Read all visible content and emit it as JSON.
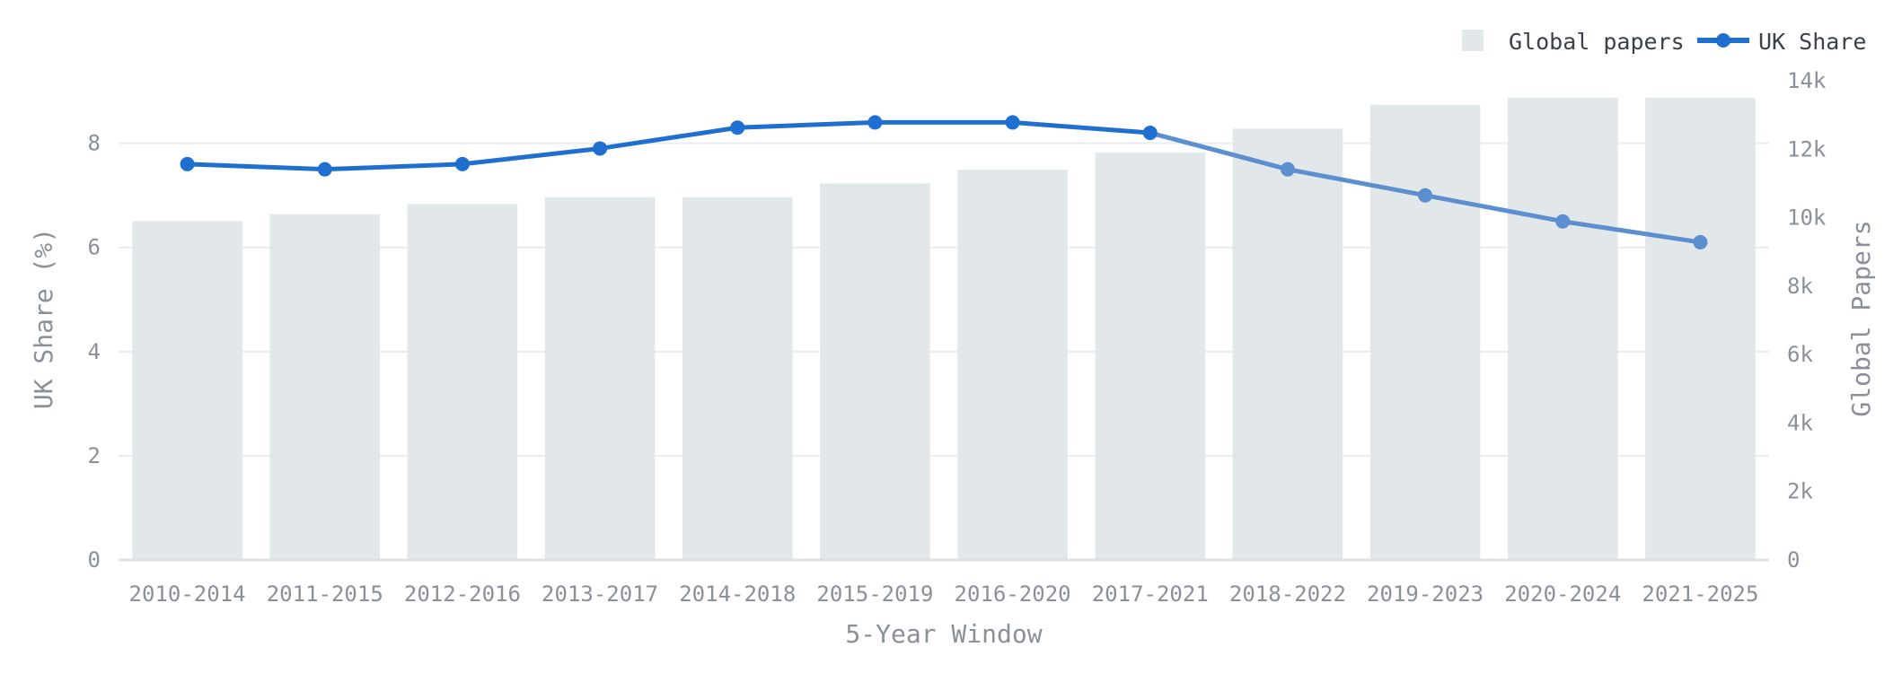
{
  "chart_data": {
    "type": "bar",
    "title": "",
    "xlabel": "5-Year Window",
    "ylabel_left": "UK Share (%)",
    "ylabel_right": "Global Papers",
    "categories": [
      "2010-2014",
      "2011-2015",
      "2012-2016",
      "2013-2017",
      "2014-2018",
      "2015-2019",
      "2016-2020",
      "2017-2021",
      "2018-2022",
      "2019-2023",
      "2020-2024",
      "2021-2025"
    ],
    "series": [
      {
        "name": "Global papers",
        "type": "bar",
        "axis": "right",
        "color": "#e2e7ea",
        "values": [
          9900,
          10100,
          10400,
          10600,
          10600,
          11000,
          11400,
          11900,
          12600,
          13300,
          13500,
          13500
        ]
      },
      {
        "name": "UK Share",
        "type": "line",
        "axis": "left",
        "color": "#1f6fd1",
        "projected_color": "#5b8fd0",
        "projected_from_index": 7,
        "values": [
          7.6,
          7.5,
          7.6,
          7.9,
          8.3,
          8.4,
          8.4,
          8.2,
          7.5,
          7.0,
          6.5,
          6.1
        ]
      }
    ],
    "ylim_left": [
      0,
      9.2
    ],
    "yticks_left": [
      "0",
      "2",
      "4",
      "6",
      "8"
    ],
    "yticks_left_values": [
      0,
      2,
      4,
      6,
      8
    ],
    "ylim_right": [
      0,
      14000
    ],
    "yticks_right": [
      "0",
      "2k",
      "4k",
      "6k",
      "8k",
      "10k",
      "12k",
      "14k"
    ],
    "yticks_right_values": [
      0,
      2000,
      4000,
      6000,
      8000,
      10000,
      12000,
      14000
    ],
    "grid": true,
    "legend_position": "top-right"
  }
}
